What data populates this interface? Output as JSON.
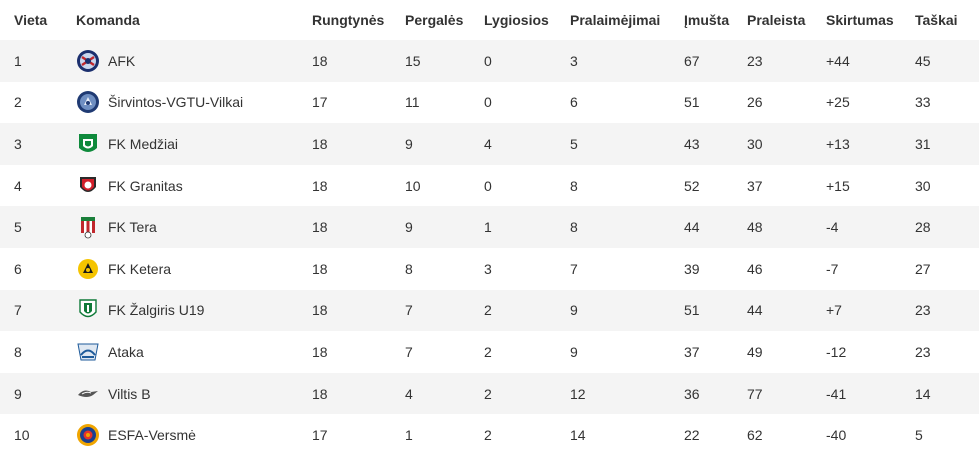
{
  "headers": [
    "Vieta",
    "Komanda",
    "Rungtynės",
    "Pergalės",
    "Lygiosios",
    "Pralaimėjimai",
    "Įmušta",
    "Praleista",
    "Skirtumas",
    "Taškai"
  ],
  "rows": [
    {
      "pos": "1",
      "team": "AFK",
      "crest": "afk-crest-icon",
      "played": "18",
      "won": "15",
      "draw": "0",
      "lost": "3",
      "gf": "67",
      "ga": "23",
      "diff": "+44",
      "pts": "45"
    },
    {
      "pos": "2",
      "team": "Širvintos-VGTU-Vilkai",
      "crest": "sirvintos-vgtu-vilkai-crest-icon",
      "played": "17",
      "won": "11",
      "draw": "0",
      "lost": "6",
      "gf": "51",
      "ga": "26",
      "diff": "+25",
      "pts": "33"
    },
    {
      "pos": "3",
      "team": "FK Medžiai",
      "crest": "fk-medziai-crest-icon",
      "played": "18",
      "won": "9",
      "draw": "4",
      "lost": "5",
      "gf": "43",
      "ga": "30",
      "diff": "+13",
      "pts": "31"
    },
    {
      "pos": "4",
      "team": "FK Granitas",
      "crest": "fk-granitas-crest-icon",
      "played": "18",
      "won": "10",
      "draw": "0",
      "lost": "8",
      "gf": "52",
      "ga": "37",
      "diff": "+15",
      "pts": "30"
    },
    {
      "pos": "5",
      "team": "FK Tera",
      "crest": "fk-tera-crest-icon",
      "played": "18",
      "won": "9",
      "draw": "1",
      "lost": "8",
      "gf": "44",
      "ga": "48",
      "diff": "-4",
      "pts": "28"
    },
    {
      "pos": "6",
      "team": "FK Ketera",
      "crest": "fk-ketera-crest-icon",
      "played": "18",
      "won": "8",
      "draw": "3",
      "lost": "7",
      "gf": "39",
      "ga": "46",
      "diff": "-7",
      "pts": "27"
    },
    {
      "pos": "7",
      "team": "FK Žalgiris U19",
      "crest": "fk-zalgiris-u19-crest-icon",
      "played": "18",
      "won": "7",
      "draw": "2",
      "lost": "9",
      "gf": "51",
      "ga": "44",
      "diff": "+7",
      "pts": "23"
    },
    {
      "pos": "8",
      "team": "Ataka",
      "crest": "ataka-crest-icon",
      "played": "18",
      "won": "7",
      "draw": "2",
      "lost": "9",
      "gf": "37",
      "ga": "49",
      "diff": "-12",
      "pts": "23"
    },
    {
      "pos": "9",
      "team": "Viltis B",
      "crest": "viltis-b-crest-icon",
      "played": "18",
      "won": "4",
      "draw": "2",
      "lost": "12",
      "gf": "36",
      "ga": "77",
      "diff": "-41",
      "pts": "14"
    },
    {
      "pos": "10",
      "team": "ESFA-Versmė",
      "crest": "esfa-versme-crest-icon",
      "played": "17",
      "won": "1",
      "draw": "2",
      "lost": "14",
      "gf": "22",
      "ga": "62",
      "diff": "-40",
      "pts": "5"
    }
  ],
  "colors": {
    "row_odd": "#f4f4f4",
    "row_even": "#ffffff",
    "text": "#333333"
  }
}
